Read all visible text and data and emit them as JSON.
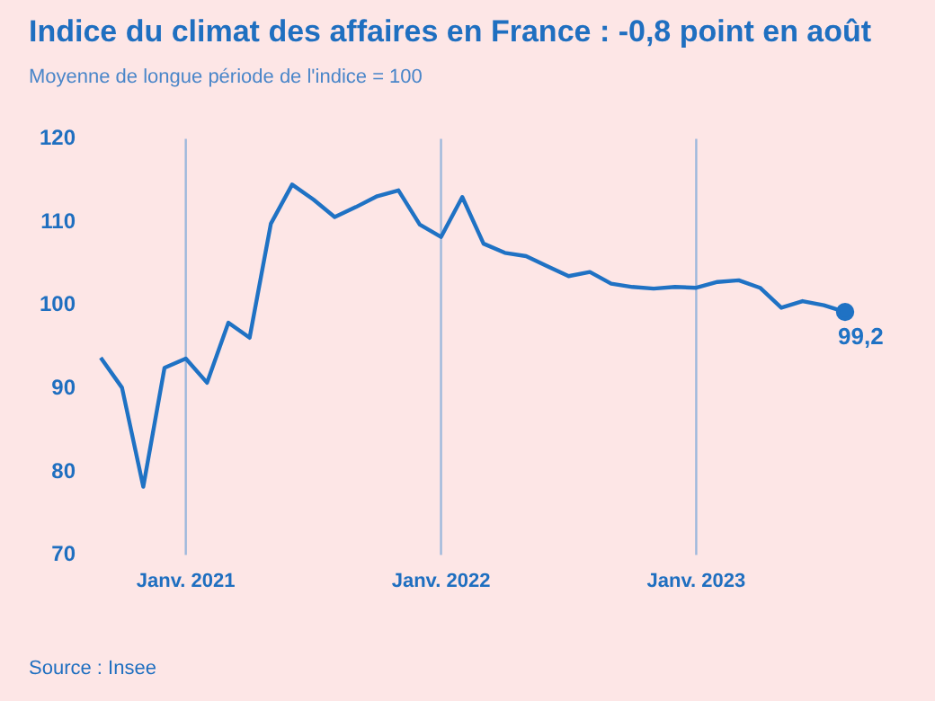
{
  "chart_data": {
    "type": "line",
    "title": "Indice du climat des affaires en France : -0,8 point en août",
    "subtitle": "Moyenne de longue période de l'indice = 100",
    "annotations": [
      "Source : Insee"
    ],
    "categories": [
      null,
      null,
      null,
      null,
      "Janv. 2021",
      null,
      null,
      null,
      null,
      null,
      null,
      null,
      null,
      null,
      null,
      null,
      "Janv. 2022",
      null,
      null,
      null,
      null,
      null,
      null,
      null,
      null,
      null,
      null,
      null,
      "Janv. 2023",
      null,
      null,
      null,
      null,
      null,
      null,
      null
    ],
    "series": [
      {
        "color": "#1f72c4",
        "values": [
          93.7,
          90.1,
          78.2,
          92.5,
          93.6,
          90.7,
          97.9,
          96.1,
          109.8,
          114.5,
          112.7,
          110.6,
          111.8,
          113.1,
          113.8,
          109.7,
          108.2,
          113.0,
          107.4,
          106.3,
          105.9,
          104.7,
          103.5,
          104.0,
          102.6,
          102.2,
          102.0,
          102.2,
          102.1,
          102.8,
          103.0,
          102.1,
          99.7,
          100.5,
          100.0,
          99.2
        ],
        "value_labels": [
          null,
          null,
          null,
          null,
          null,
          null,
          null,
          null,
          null,
          null,
          null,
          null,
          null,
          null,
          null,
          null,
          null,
          null,
          null,
          null,
          null,
          null,
          null,
          null,
          null,
          null,
          null,
          null,
          null,
          null,
          null,
          null,
          null,
          null,
          null,
          "99,2"
        ]
      }
    ],
    "ylim": [
      70,
      120
    ],
    "yticks": [
      70,
      80,
      90,
      100,
      110,
      120
    ],
    "grid": false,
    "legend": false,
    "line_style": "solid",
    "ref_lines": [
      {
        "axis": "x",
        "value": "Janv. 2021",
        "color": "#9db8dc"
      },
      {
        "axis": "x",
        "value": "Janv. 2022",
        "color": "#9db8dc"
      },
      {
        "axis": "x",
        "value": "Janv. 2023",
        "color": "#9db8dc"
      }
    ]
  }
}
